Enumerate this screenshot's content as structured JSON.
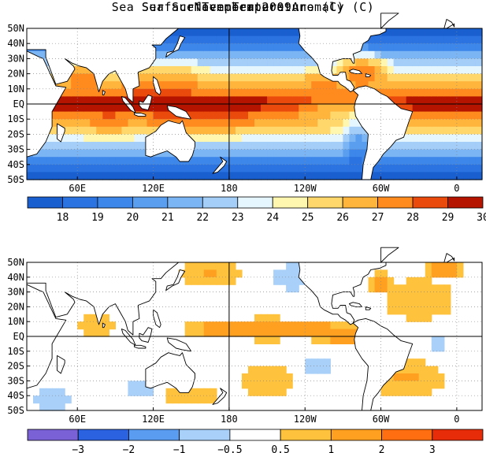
{
  "figure_title": "November 2009",
  "maps": [
    {
      "title": "Sea Surface Temperature (C)",
      "lat_labels": [
        "50N",
        "40N",
        "30N",
        "20N",
        "10N",
        "EQ",
        "10S",
        "20S",
        "30S",
        "40S",
        "50S"
      ],
      "lon_labels": [
        "60E",
        "120E",
        "180",
        "120W",
        "60W",
        "0"
      ],
      "colorbar_colors": [
        "#1a5fd0",
        "#2b73e0",
        "#3d86ea",
        "#5a9ef0",
        "#7bb5f4",
        "#a4cdf8",
        "#e6f6ff",
        "#fff6b0",
        "#ffd76a",
        "#ffb43c",
        "#ff8a1e",
        "#ea4a0c",
        "#b41400"
      ],
      "colorbar_labels": [
        "18",
        "19",
        "20",
        "21",
        "22",
        "23",
        "24",
        "25",
        "26",
        "27",
        "28",
        "29",
        "30"
      ]
    },
    {
      "title": "Sea Surface Temperature Anomaly (C)",
      "lat_labels": [
        "50N",
        "40N",
        "30N",
        "20N",
        "10N",
        "EQ",
        "10S",
        "20S",
        "30S",
        "40S",
        "50S"
      ],
      "lon_labels": [
        "60E",
        "120E",
        "180",
        "120W",
        "60W",
        "0"
      ],
      "colorbar_colors": [
        "#7a62d6",
        "#2b62e0",
        "#5a9cf0",
        "#a8d0f8",
        "#ffffff",
        "#ffc23c",
        "#ffa020",
        "#ff6e10",
        "#e62c08"
      ],
      "colorbar_labels": [
        "−3",
        "−2",
        "−1",
        "−0.5",
        "0.5",
        "1",
        "2",
        "3"
      ]
    }
  ]
}
